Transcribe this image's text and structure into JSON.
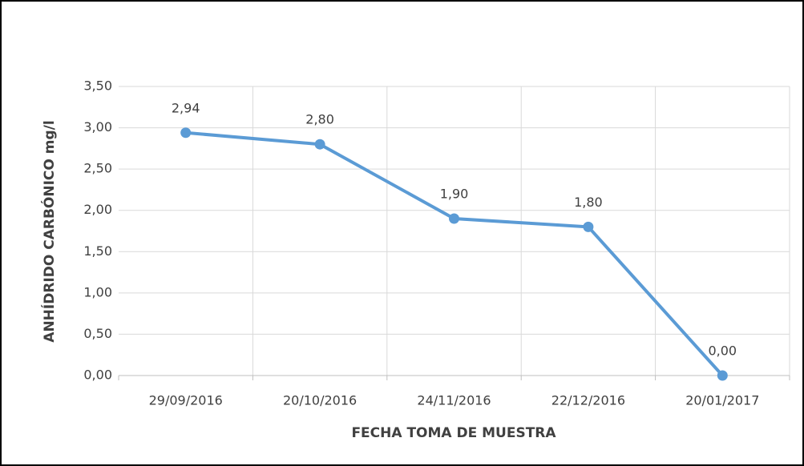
{
  "chart_data": {
    "type": "line",
    "x_label": "FECHA TOMA DE MUESTRA",
    "y_label": "ANHÍDRIDO CARBÓNICO mg/l",
    "categories": [
      "29/09/2016",
      "20/10/2016",
      "24/11/2016",
      "22/12/2016",
      "20/01/2017"
    ],
    "values": [
      2.94,
      2.8,
      1.9,
      1.8,
      0.0
    ],
    "value_labels": [
      "2,94",
      "2,80",
      "1,90",
      "1,80",
      "0,00"
    ],
    "color": "#5b9bd5",
    "ylim": [
      0,
      3.5
    ],
    "yticks": [
      {
        "value": 0,
        "label": "0,00"
      },
      {
        "value": 0.5,
        "label": "0,50"
      },
      {
        "value": 1,
        "label": "1,00"
      },
      {
        "value": 1.5,
        "label": "1,50"
      },
      {
        "value": 2,
        "label": "2,00"
      },
      {
        "value": 2.5,
        "label": "2,50"
      },
      {
        "value": 3,
        "label": "3,00"
      },
      {
        "value": 3.5,
        "label": "3,50"
      }
    ],
    "grid": true
  }
}
